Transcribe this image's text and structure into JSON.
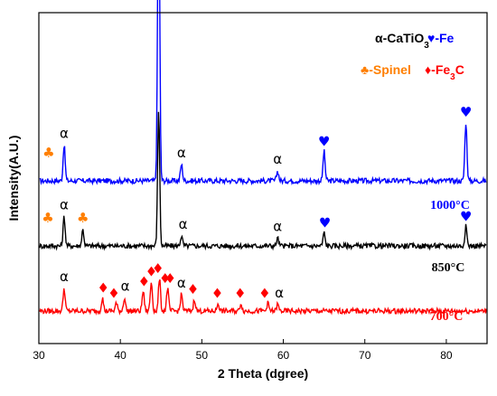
{
  "chart_data": {
    "type": "line",
    "xlabel": "2 Theta (dgree)",
    "ylabel": "Intensity(A.U.)",
    "xlim": [
      30,
      85
    ],
    "x_ticks": [
      "30",
      "40",
      "50",
      "60",
      "70",
      "80"
    ],
    "grid": false,
    "legend": {
      "placement": "top-right",
      "entries": [
        {
          "symbol": "α",
          "parts": [
            [
              "-CaTiO",
              ""
            ],
            [
              "3",
              "sub"
            ]
          ],
          "color": "#000000"
        },
        {
          "symbol": "♥",
          "parts": [
            [
              "-Fe",
              ""
            ]
          ],
          "color": "#0000ff",
          "symbol_color": "#0000ff"
        },
        {
          "symbol": "♣",
          "parts": [
            [
              "-Spinel",
              ""
            ]
          ],
          "color": "#ff7f00",
          "symbol_color": "#ff7f00"
        },
        {
          "symbol": "♦",
          "parts": [
            [
              "-Fe",
              ""
            ],
            [
              "3",
              "sub"
            ],
            [
              "C",
              ""
            ]
          ],
          "color": "#ff0000",
          "symbol_color": "#ff0000"
        }
      ]
    },
    "series": [
      {
        "name": "1000°C",
        "color": "#0000ff",
        "baseline": 1.0,
        "peaks": [
          [
            33.1,
            0.55
          ],
          [
            44.7,
            4.9
          ],
          [
            47.5,
            0.25
          ],
          [
            59.3,
            0.15
          ],
          [
            65.0,
            0.45
          ],
          [
            82.4,
            0.9
          ]
        ],
        "markers": [
          {
            "x": 33.1,
            "symbol": "α"
          },
          {
            "x": 44.7,
            "symbol": "♥"
          },
          {
            "x": 47.5,
            "symbol": "α"
          },
          {
            "x": 59.3,
            "symbol": "α"
          },
          {
            "x": 65.0,
            "symbol": "♥"
          },
          {
            "x": 82.4,
            "symbol": "♥"
          },
          {
            "x": 31.2,
            "symbol": "♣"
          }
        ]
      },
      {
        "name": "850°C",
        "color": "#000000",
        "baseline": 0.0,
        "peaks": [
          [
            33.1,
            0.45
          ],
          [
            35.4,
            0.25
          ],
          [
            44.7,
            2.1
          ],
          [
            47.5,
            0.15
          ],
          [
            59.3,
            0.12
          ],
          [
            65.0,
            0.2
          ],
          [
            82.4,
            0.3
          ]
        ],
        "markers": [
          {
            "x": 31.1,
            "symbol": "♣"
          },
          {
            "x": 33.1,
            "symbol": "α"
          },
          {
            "x": 35.4,
            "symbol": "♣"
          },
          {
            "x": 47.7,
            "symbol": "α"
          },
          {
            "x": 59.3,
            "symbol": "α"
          },
          {
            "x": 65.1,
            "symbol": "♥"
          },
          {
            "x": 82.4,
            "symbol": "♥"
          }
        ]
      },
      {
        "name": "700°C",
        "color": "#ff0000",
        "baseline": -1.0,
        "peaks": [
          [
            33.1,
            0.35
          ],
          [
            37.8,
            0.2
          ],
          [
            39.5,
            0.12
          ],
          [
            40.5,
            0.2
          ],
          [
            42.8,
            0.3
          ],
          [
            43.8,
            0.45
          ],
          [
            44.8,
            0.5
          ],
          [
            45.8,
            0.35
          ],
          [
            47.5,
            0.25
          ],
          [
            49.1,
            0.18
          ],
          [
            52.0,
            0.12
          ],
          [
            54.8,
            0.12
          ],
          [
            58.1,
            0.12
          ],
          [
            59.3,
            0.1
          ]
        ],
        "markers": [
          {
            "x": 33.1,
            "symbol": "α"
          },
          {
            "x": 37.9,
            "symbol": "♦"
          },
          {
            "x": 39.2,
            "symbol": "♦"
          },
          {
            "x": 40.6,
            "symbol": "α"
          },
          {
            "x": 42.9,
            "symbol": "♦"
          },
          {
            "x": 43.8,
            "symbol": "♦"
          },
          {
            "x": 44.6,
            "symbol": "♦"
          },
          {
            "x": 45.5,
            "symbol": "♦"
          },
          {
            "x": 46.1,
            "symbol": "♦"
          },
          {
            "x": 47.5,
            "symbol": "α"
          },
          {
            "x": 48.9,
            "symbol": "♦"
          },
          {
            "x": 51.9,
            "symbol": "♦"
          },
          {
            "x": 54.7,
            "symbol": "♦"
          },
          {
            "x": 57.7,
            "symbol": "♦"
          },
          {
            "x": 59.5,
            "symbol": "α"
          }
        ]
      }
    ]
  }
}
